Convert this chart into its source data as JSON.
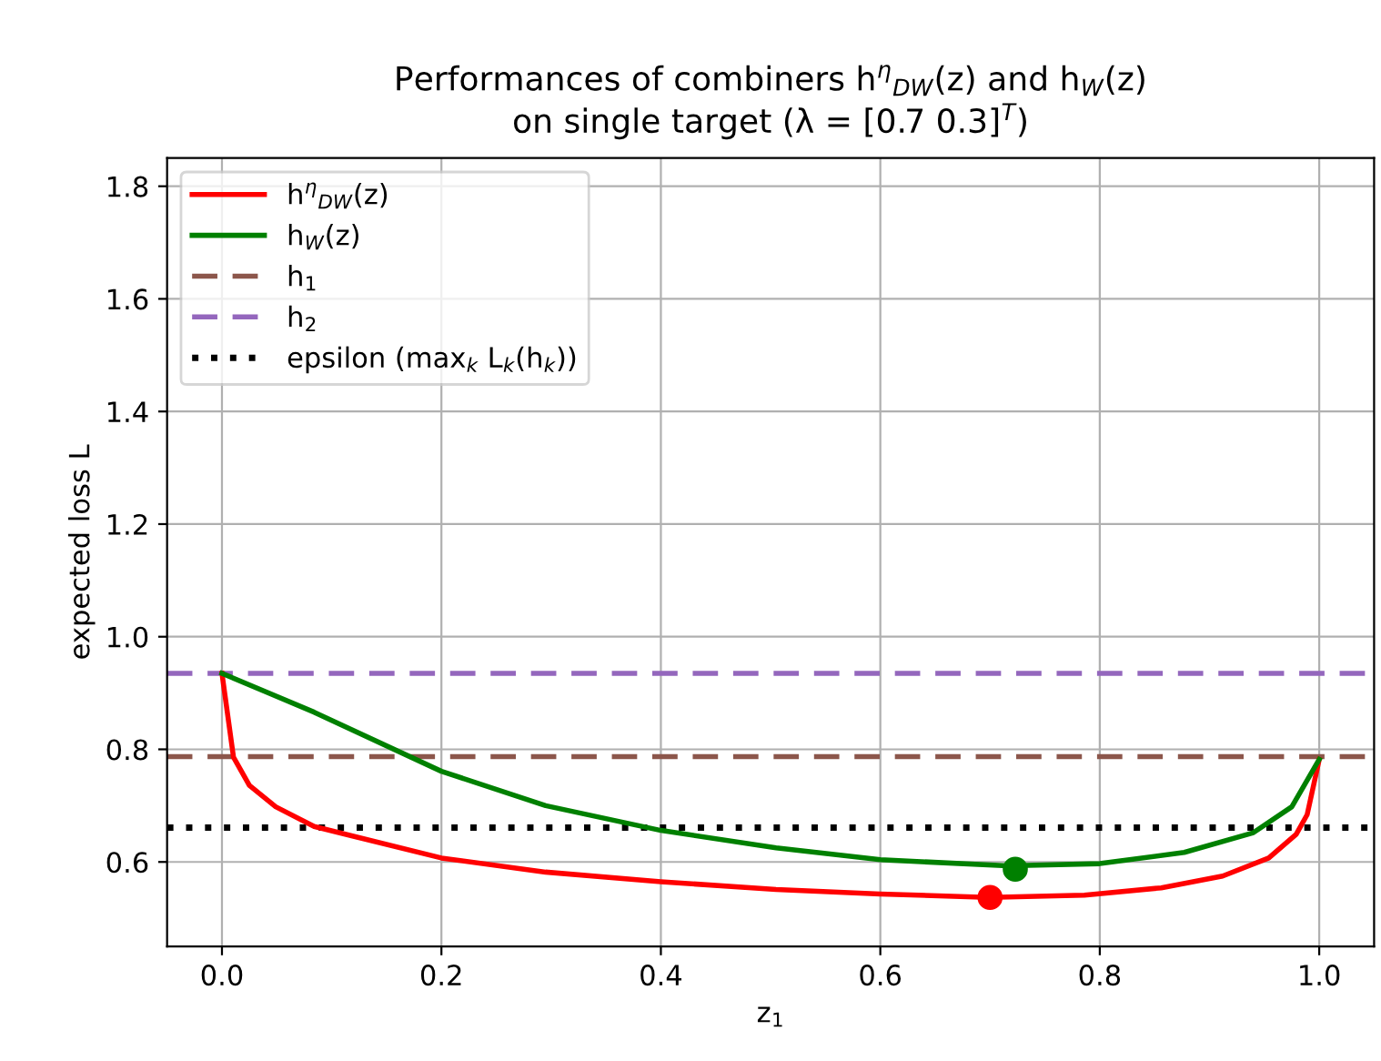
{
  "chart_data": {
    "type": "line",
    "title": "Performances of combiners h$^{η}$$_{DW}$(z) and h$_{W}$(z)\non single target (λ = [0.7 0.3]$^{T}$)",
    "xlabel": "z$_{1}$",
    "ylabel": "expected loss L",
    "xlim": [
      -0.05,
      1.05
    ],
    "ylim": [
      0.45,
      1.85
    ],
    "xticks": [
      {
        "value": 0,
        "label": "0.0"
      },
      0.2,
      0.4,
      0.6,
      0.8,
      {
        "value": 1,
        "label": "1.0"
      }
    ],
    "yticks": [
      0.6,
      0.8,
      {
        "value": 1,
        "label": "1.0"
      },
      1.2,
      1.4,
      1.6,
      1.8
    ],
    "grid": true,
    "legend": "top left",
    "marker": "none",
    "line_style": "solid",
    "series": [
      {
        "name": "h$^{η}$$_{DW}$(z)",
        "color": "#ff0000",
        "x": [
          0,
          0.0105,
          0.025,
          0.049,
          0.084,
          0.119,
          0.2,
          0.295,
          0.4,
          0.505,
          0.6,
          0.699,
          0.786,
          0.856,
          0.912,
          0.954,
          0.979,
          0.989,
          1.0
        ],
        "values": [
          0.935,
          0.786,
          0.736,
          0.698,
          0.663,
          0.646,
          0.607,
          0.582,
          0.565,
          0.551,
          0.543,
          0.537,
          0.541,
          0.554,
          0.575,
          0.607,
          0.649,
          0.684,
          0.782
        ]
      },
      {
        "name": "h$_{W}$(z)",
        "color": "#008000",
        "x": [
          0,
          0.084,
          0.2,
          0.295,
          0.4,
          0.505,
          0.6,
          0.716,
          0.8,
          0.877,
          0.94,
          0.975,
          1.0
        ],
        "values": [
          0.935,
          0.866,
          0.761,
          0.7,
          0.656,
          0.625,
          0.604,
          0.593,
          0.597,
          0.617,
          0.652,
          0.698,
          0.782
        ]
      },
      {
        "color": "#ff0000",
        "type": "scatter",
        "marker": "circle",
        "x": [
          0.7
        ],
        "values": [
          0.537
        ]
      },
      {
        "color": "#008000",
        "type": "scatter",
        "marker": "circle",
        "x": [
          0.723
        ],
        "values": [
          0.587
        ]
      }
    ],
    "ref_lines": [
      {
        "axis": "y",
        "value": 0.787,
        "label": "h$_{1}$",
        "color": "#8c564b",
        "line_style": "dashed"
      },
      {
        "axis": "y",
        "value": 0.935,
        "label": "h$_{2}$",
        "color": "#9467bd",
        "line_style": "dashed"
      },
      {
        "axis": "y",
        "value": 0.661,
        "label": "epsilon (max$_{k}$ L$_{k}$(h$_{k}$))",
        "color": "#000000",
        "line_style": "dotted"
      }
    ]
  }
}
